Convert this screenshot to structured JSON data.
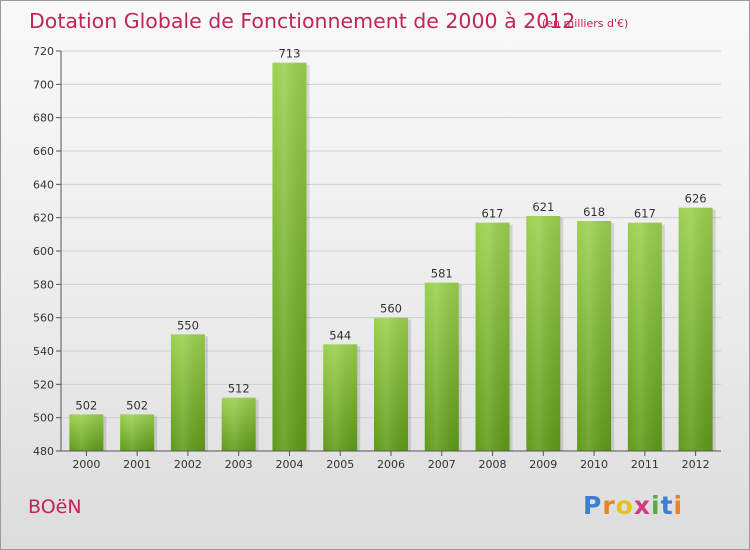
{
  "header": {
    "title": "Dotation Globale de Fonctionnement de 2000 à 2012",
    "unit_note": "(en milliers d'€)"
  },
  "footer": {
    "commune": "BOëN",
    "logo": "Proxiti"
  },
  "colors": {
    "title": "#c0245a",
    "bar_top": "#9bd14f",
    "bar_bottom": "#5f9a18"
  },
  "chart_data": {
    "type": "bar",
    "categories": [
      "2000",
      "2001",
      "2002",
      "2003",
      "2004",
      "2005",
      "2006",
      "2007",
      "2008",
      "2009",
      "2010",
      "2011",
      "2012"
    ],
    "values": [
      502,
      502,
      550,
      512,
      713,
      544,
      560,
      581,
      617,
      621,
      618,
      617,
      626
    ],
    "ylim": [
      480,
      720
    ],
    "yticks": [
      480,
      500,
      520,
      540,
      560,
      580,
      600,
      620,
      640,
      660,
      680,
      700,
      720
    ],
    "grid": true,
    "legend": "none",
    "data_labels": true
  }
}
